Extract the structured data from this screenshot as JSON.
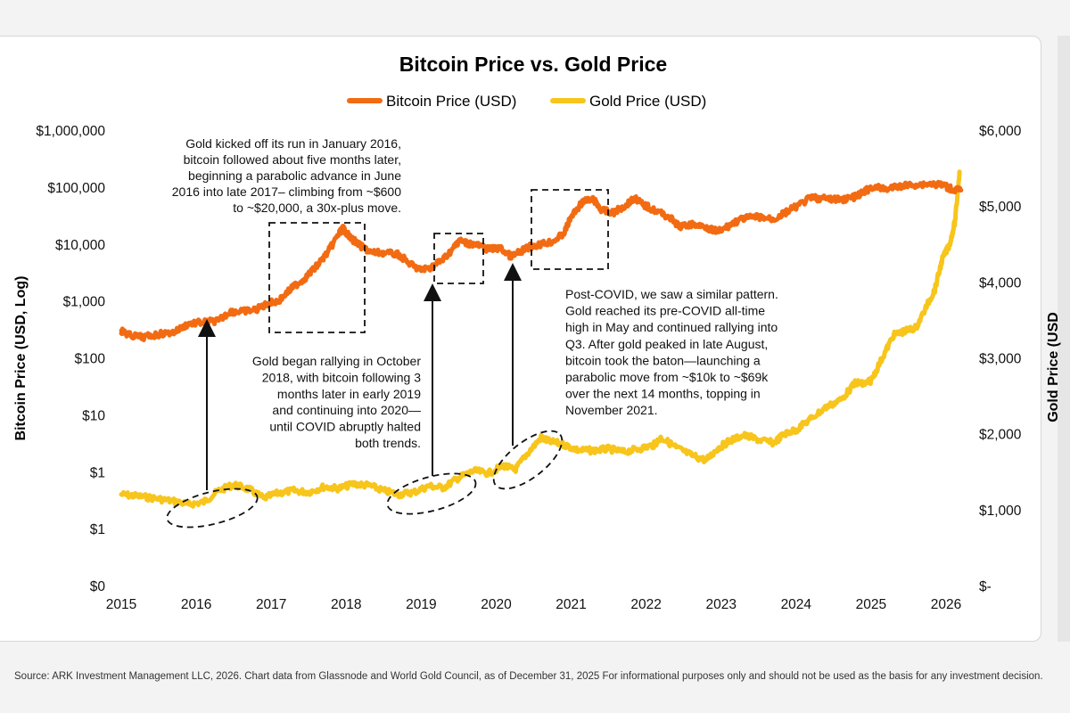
{
  "chart_data": {
    "type": "line",
    "title": "Bitcoin Price vs. Gold Price",
    "legend": [
      {
        "label": "Bitcoin Price (USD)",
        "color": "#f26b13"
      },
      {
        "label": "Gold Price (USD)",
        "color": "#f7c51b"
      }
    ],
    "legend_position": "top-center",
    "xlabel": "",
    "ylabel_left": "Bitcoin Price (USD, Log)",
    "ylabel_right": "Gold Price (USD",
    "x_ticks": [
      "2015",
      "2016",
      "2017",
      "2018",
      "2019",
      "2020",
      "2021",
      "2022",
      "2023",
      "2024",
      "2025",
      "2026"
    ],
    "xlim": [
      2015,
      2026.25
    ],
    "y_left_ticks": [
      "$0",
      "$1",
      "$1",
      "$10",
      "$100",
      "$1,000",
      "$10,000",
      "$100,000",
      "$1,000,000"
    ],
    "y_left_log_range": [
      -2,
      6
    ],
    "y_right_ticks": [
      "$-",
      "$1,000",
      "$2,000",
      "$3,000",
      "$4,000",
      "$5,000",
      "$6,000"
    ],
    "y_right_range": [
      0,
      6000
    ],
    "grid": false,
    "series": [
      {
        "name": "Bitcoin Price (USD)",
        "axis": "left",
        "x": [
          2015.0,
          2015.1,
          2015.3,
          2015.5,
          2015.7,
          2015.9,
          2016.1,
          2016.3,
          2016.45,
          2016.6,
          2016.8,
          2016.95,
          2017.1,
          2017.3,
          2017.45,
          2017.6,
          2017.75,
          2017.9,
          2017.96,
          2018.05,
          2018.2,
          2018.35,
          2018.5,
          2018.7,
          2018.9,
          2019.0,
          2019.15,
          2019.3,
          2019.45,
          2019.5,
          2019.6,
          2019.75,
          2019.9,
          2020.05,
          2020.2,
          2020.3,
          2020.45,
          2020.6,
          2020.75,
          2020.9,
          2021.0,
          2021.15,
          2021.3,
          2021.4,
          2021.55,
          2021.7,
          2021.85,
          2021.95,
          2022.1,
          2022.3,
          2022.45,
          2022.6,
          2022.8,
          2022.9,
          2023.0,
          2023.15,
          2023.3,
          2023.5,
          2023.7,
          2023.85,
          2024.0,
          2024.2,
          2024.4,
          2024.6,
          2024.8,
          2024.9,
          2025.0,
          2025.2,
          2025.4,
          2025.6,
          2025.8,
          2025.95,
          2026.1,
          2026.2
        ],
        "values": [
          300,
          250,
          230,
          260,
          280,
          400,
          420,
          450,
          650,
          650,
          700,
          900,
          1000,
          1800,
          2500,
          4000,
          7000,
          15000,
          19000,
          13000,
          9000,
          7000,
          7000,
          6500,
          4000,
          3500,
          4000,
          5500,
          9000,
          11500,
          10500,
          9500,
          8000,
          8500,
          6000,
          7000,
          9000,
          10000,
          11000,
          15000,
          30000,
          55000,
          60000,
          40000,
          35000,
          45000,
          65000,
          50000,
          40000,
          30000,
          20000,
          22000,
          20000,
          17000,
          17000,
          23000,
          28000,
          30000,
          27000,
          35000,
          45000,
          65000,
          62000,
          60000,
          68000,
          80000,
          100000,
          92000,
          105000,
          110000,
          115000,
          108000,
          90000,
          88000
        ]
      },
      {
        "name": "Gold Price (USD)",
        "axis": "right",
        "x": [
          2015.0,
          2015.2,
          2015.45,
          2015.7,
          2015.9,
          2016.1,
          2016.3,
          2016.5,
          2016.7,
          2016.9,
          2017.1,
          2017.3,
          2017.5,
          2017.7,
          2017.9,
          2018.1,
          2018.3,
          2018.5,
          2018.7,
          2018.9,
          2019.1,
          2019.3,
          2019.5,
          2019.7,
          2019.9,
          2020.1,
          2020.25,
          2020.4,
          2020.6,
          2020.7,
          2020.9,
          2021.1,
          2021.3,
          2021.5,
          2021.7,
          2021.9,
          2022.1,
          2022.2,
          2022.4,
          2022.6,
          2022.8,
          2022.95,
          2023.1,
          2023.3,
          2023.5,
          2023.7,
          2023.85,
          2024.0,
          2024.2,
          2024.4,
          2024.6,
          2024.8,
          2024.9,
          2025.0,
          2025.15,
          2025.3,
          2025.45,
          2025.6,
          2025.75,
          2025.85,
          2025.95,
          2026.05,
          2026.12,
          2026.18
        ],
        "values": [
          1200,
          1180,
          1150,
          1110,
          1070,
          1100,
          1250,
          1330,
          1270,
          1150,
          1220,
          1250,
          1230,
          1300,
          1280,
          1340,
          1320,
          1250,
          1200,
          1230,
          1310,
          1290,
          1420,
          1510,
          1480,
          1580,
          1520,
          1720,
          1950,
          1900,
          1860,
          1780,
          1780,
          1800,
          1760,
          1800,
          1850,
          1950,
          1820,
          1720,
          1650,
          1800,
          1900,
          1980,
          1920,
          1880,
          2000,
          2050,
          2200,
          2350,
          2450,
          2680,
          2650,
          2700,
          3000,
          3300,
          3350,
          3400,
          3700,
          3900,
          4300,
          4500,
          4800,
          5450
        ]
      }
    ],
    "annotations": [
      {
        "id": "note-2016",
        "lines": [
          "Gold kicked off its run in January 2016,",
          "bitcoin followed about five months later,",
          "beginning a parabolic advance in June",
          "2016 into late 2017– climbing from ~$600",
          "to ~$20,000, a 30x-plus move."
        ]
      },
      {
        "id": "note-2019",
        "lines": [
          "Gold began rallying in October",
          "2018, with bitcoin following  3",
          "months later in early 2019",
          "and continuing into 2020—",
          "until COVID abruptly halted",
          "both trends."
        ]
      },
      {
        "id": "note-covid",
        "lines": [
          "Post-COVID, we saw a similar pattern.",
          "Gold reached its pre-COVID all-time",
          "high in May and continued rallying into",
          "Q3. After gold peaked in late August,",
          "bitcoin took the baton—launching a",
          "parabolic move from ~$10k to ~$69k",
          "over the next 14 months, topping in",
          "November 2021."
        ]
      }
    ]
  },
  "footer": {
    "source_text": "Source: ARK Investment Management LLC, 2026. Chart data from Glassnode and World Gold Council, as of December 31, 2025 For informational purposes only and should not be used as the basis for any investment decision."
  }
}
